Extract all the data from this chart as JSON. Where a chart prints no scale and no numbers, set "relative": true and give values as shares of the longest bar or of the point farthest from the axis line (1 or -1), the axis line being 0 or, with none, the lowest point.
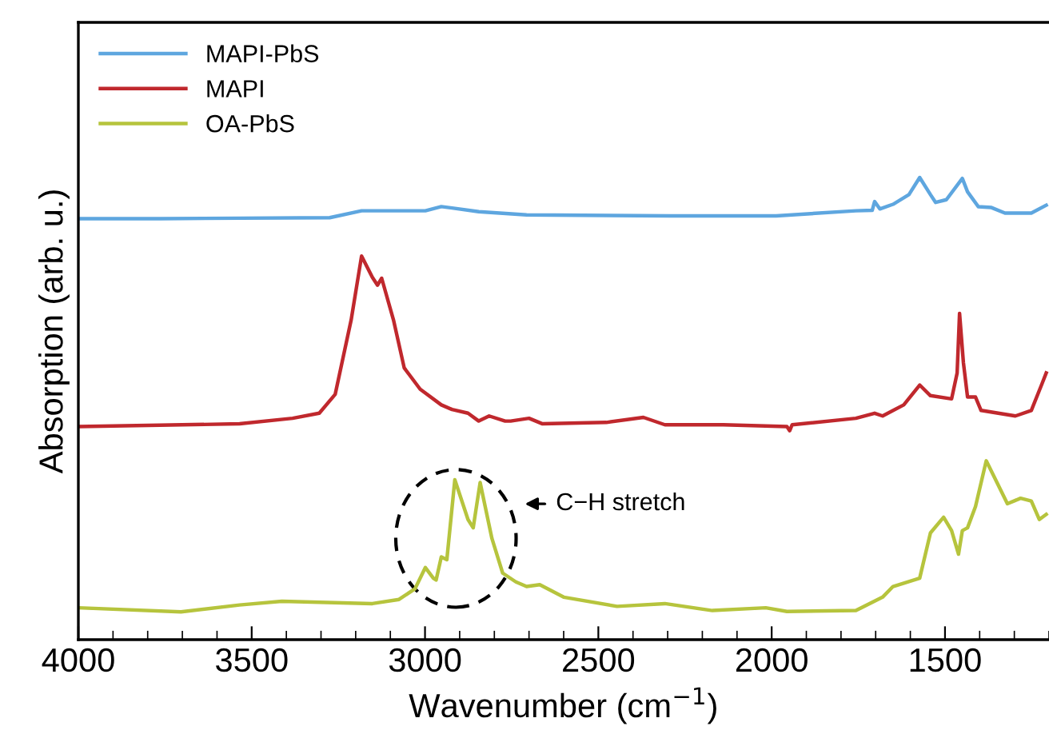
{
  "chart_data": {
    "type": "line",
    "xlabel": "Wavenumber (cm$^{−1}$)",
    "ylabel": "Absorption (arb. u.)",
    "relative": true,
    "xlim": [
      4000,
      1200
    ],
    "xticks": [
      4000,
      3500,
      3000,
      2500,
      2000,
      1500
    ],
    "legend": "top left",
    "grid": false,
    "marker": "none",
    "line_style": "solid",
    "series": [
      {
        "name": "MAPI-PbS",
        "color": "#5ea6df",
        "x": [
          4000,
          3765,
          3535,
          3275,
          3183,
          2999,
          2953,
          2922,
          2845,
          2707,
          2293,
          1987,
          1757,
          1710,
          1703,
          1688,
          1650,
          1604,
          1573,
          1542,
          1527,
          1496,
          1450,
          1435,
          1404,
          1366,
          1327,
          1251,
          1208
        ],
        "values": [
          0.911,
          0.911,
          0.912,
          0.913,
          0.928,
          0.928,
          0.937,
          0.934,
          0.926,
          0.919,
          0.917,
          0.917,
          0.928,
          0.929,
          0.948,
          0.932,
          0.942,
          0.963,
          1.0,
          0.963,
          0.946,
          0.952,
          0.998,
          0.969,
          0.937,
          0.935,
          0.923,
          0.923,
          0.94
        ]
      },
      {
        "name": "MAPI",
        "color": "#c0282d",
        "x": [
          4000,
          3765,
          3535,
          3382,
          3305,
          3259,
          3213,
          3183,
          3152,
          3137,
          3125,
          3091,
          3060,
          3014,
          2953,
          2922,
          2876,
          2845,
          2815,
          2769,
          2753,
          2700,
          2661,
          2477,
          2370,
          2308,
          2140,
          1956,
          1948,
          1941,
          1757,
          1703,
          1680,
          1619,
          1573,
          1542,
          1481,
          1465,
          1458,
          1447,
          1435,
          1412,
          1396,
          1297,
          1251,
          1220,
          1208
        ],
        "values": [
          0.461,
          0.464,
          0.467,
          0.479,
          0.49,
          0.531,
          0.692,
          0.83,
          0.784,
          0.767,
          0.782,
          0.692,
          0.588,
          0.542,
          0.508,
          0.498,
          0.49,
          0.473,
          0.484,
          0.473,
          0.473,
          0.479,
          0.467,
          0.47,
          0.481,
          0.465,
          0.465,
          0.461,
          0.452,
          0.465,
          0.479,
          0.49,
          0.484,
          0.508,
          0.551,
          0.528,
          0.521,
          0.577,
          0.706,
          0.6,
          0.525,
          0.525,
          0.496,
          0.484,
          0.496,
          0.554,
          0.577
        ]
      },
      {
        "name": "OA-PbS",
        "color": "#b6c43d",
        "x": [
          4000,
          3704,
          3535,
          3413,
          3152,
          3075,
          3029,
          2999,
          2976,
          2968,
          2953,
          2937,
          2914,
          2876,
          2861,
          2841,
          2807,
          2776,
          2738,
          2707,
          2669,
          2600,
          2446,
          2308,
          2171,
          2017,
          1956,
          1757,
          1680,
          1650,
          1573,
          1542,
          1504,
          1481,
          1461,
          1450,
          1435,
          1412,
          1381,
          1358,
          1320,
          1282,
          1251,
          1228,
          1208
        ],
        "values": [
          0.069,
          0.06,
          0.075,
          0.083,
          0.078,
          0.087,
          0.11,
          0.156,
          0.133,
          0.129,
          0.179,
          0.173,
          0.346,
          0.26,
          0.242,
          0.34,
          0.219,
          0.144,
          0.125,
          0.115,
          0.119,
          0.092,
          0.072,
          0.078,
          0.063,
          0.069,
          0.061,
          0.063,
          0.092,
          0.115,
          0.133,
          0.231,
          0.265,
          0.236,
          0.185,
          0.236,
          0.242,
          0.288,
          0.387,
          0.352,
          0.294,
          0.306,
          0.3,
          0.26,
          0.271
        ]
      }
    ],
    "annotations": [
      "C−H stretch"
    ]
  }
}
